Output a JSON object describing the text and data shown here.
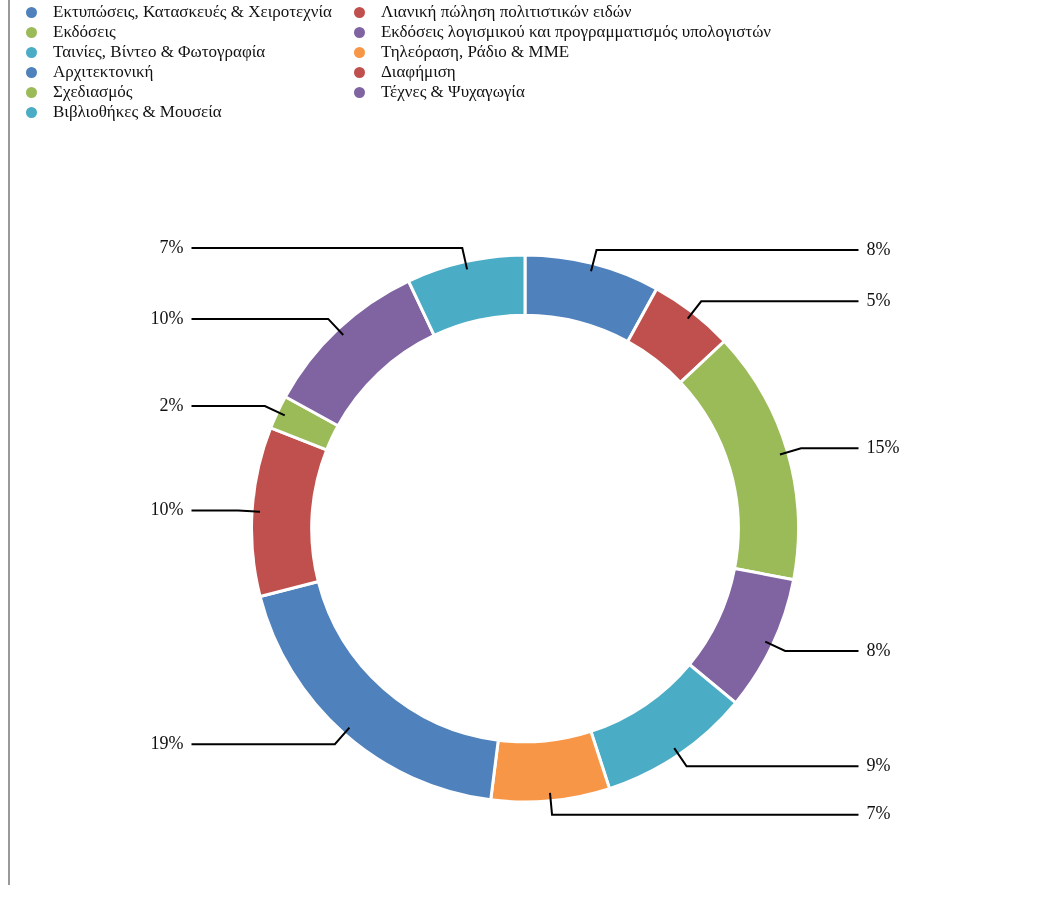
{
  "chart_data": {
    "type": "donut",
    "categories": [
      "Εκτυπώσεις, Κατασκευές & Χειροτεχνία",
      "Λιανική πώληση πολιτιστικών ειδών",
      "Εκδόσεις",
      "Εκδόσεις λογισμικού και προγραμματισμός υπολογιστών",
      "Ταινίες, Βίντεο & Φωτογραφία",
      "Τηλεόραση, Ράδιο & ΜΜΕ",
      "Αρχιτεκτονική",
      "Διαφήμιση",
      "Σχεδιασμός",
      "Τέχνες & Ψυχαγωγία",
      "Βιβλιοθήκες & Μουσεία"
    ],
    "values": [
      8,
      5,
      15,
      8,
      9,
      7,
      19,
      10,
      2,
      10,
      7
    ],
    "value_labels": [
      "8%",
      "5%",
      "15%",
      "8%",
      "9%",
      "7%",
      "19%",
      "10%",
      "2%",
      "10%",
      "7%"
    ],
    "colors": [
      "#4f81bd",
      "#c0504d",
      "#9bbb59",
      "#8064a2",
      "#4bacc6",
      "#f79646",
      "#4f81bd",
      "#c0504d",
      "#9bbb59",
      "#8064a2",
      "#4bacc6"
    ],
    "legend": "top left"
  }
}
